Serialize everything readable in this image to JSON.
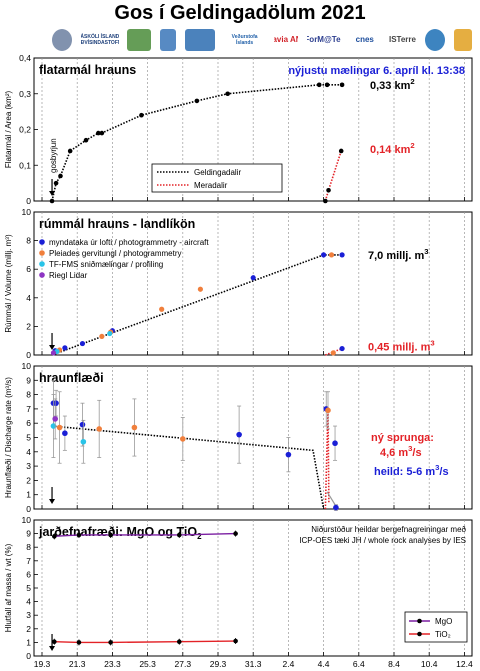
{
  "title": "Gos í Geldingadölum 2021",
  "logos": [
    {
      "name": "hi-seal",
      "text": "",
      "color": "#6b7fa0"
    },
    {
      "name": "hi-logo",
      "text": "HÁSKÓLI ÍSLANDS JARÐVÍSINDASTOFNUN",
      "color": "#1d3f7a"
    },
    {
      "name": "ni-logo",
      "text": "",
      "color": "#4a8c3a"
    },
    {
      "name": "lmi-logo",
      "text": "",
      "color": "#3a76b8"
    },
    {
      "name": "vi-logo",
      "text": "",
      "color": "#2b6cb0"
    },
    {
      "name": "vedur-logo",
      "text": "Veðurstofa Íslands",
      "color": "#1f5fa8"
    },
    {
      "name": "isavia-logo",
      "text": "isavia ANS",
      "color": "#d2232a"
    },
    {
      "name": "formator-logo",
      "text": "ForM@Ter",
      "color": "#2c3e8f"
    },
    {
      "name": "cnes-logo",
      "text": "cnes",
      "color": "#1c4d9c"
    },
    {
      "name": "isterre-logo",
      "text": "ISTerre",
      "color": "#444444"
    },
    {
      "name": "lmv-logo",
      "text": "",
      "color": "#1b6fb5"
    },
    {
      "name": "iav-logo",
      "text": "",
      "color": "#e0a020"
    }
  ],
  "colors": {
    "geldingadalir": "#000000",
    "meradalir": "#e32227",
    "aircraft": "#1a1fd6",
    "pleiades": "#f07f3c",
    "tf_fms": "#29c4e8",
    "riegl": "#8e35c4",
    "mgo": "#7b1fa2",
    "tio2": "#e32227",
    "blue_text": "#1a1fd6",
    "red_text": "#e32227"
  },
  "chart_data": [
    {
      "type": "line",
      "panel_title": "flatarmál hrauns",
      "ylabel": "Flatarmál / Area (km²)",
      "ylim": [
        0,
        0.4
      ],
      "yticks": [
        "0",
        "0,1",
        "0,2",
        "0,3",
        "0,4"
      ],
      "note": "nýjustu mælingar 6. apríl kl. 13:38",
      "annotation": "gosbyrjun",
      "legend": [
        "Geldingadalir",
        "Meradalir"
      ],
      "series": [
        {
          "name": "Geldingadalir",
          "style": "dotted",
          "points": [
            [
              19.87,
              0
            ],
            [
              20.1,
              0.05
            ],
            [
              20.35,
              0.07
            ],
            [
              20.9,
              0.14
            ],
            [
              21.8,
              0.17
            ],
            [
              22.5,
              0.19
            ],
            [
              22.7,
              0.19
            ],
            [
              24.95,
              0.24
            ],
            [
              28.1,
              0.28
            ],
            [
              29.85,
              0.3
            ],
            [
              35.05,
              0.325
            ],
            [
              35.5,
              0.325
            ],
            [
              36.35,
              0.325
            ]
          ]
        },
        {
          "name": "Meradalir",
          "style": "dotted",
          "points": [
            [
              35.4,
              0
            ],
            [
              35.58,
              0.03
            ],
            [
              36.3,
              0.14
            ]
          ]
        }
      ],
      "end_labels": [
        {
          "text": "0,33 km",
          "sup": "2",
          "color": "#000000"
        },
        {
          "text": "0,14 km",
          "sup": "2",
          "color": "#e32227"
        }
      ]
    },
    {
      "type": "scatter",
      "panel_title": "rúmmál hrauns - landlíkön",
      "ylabel": "Rúmmál / Volume (millj. m³)",
      "ylim": [
        0,
        10
      ],
      "yticks": [
        "0",
        "2",
        "4",
        "6",
        "8",
        "10"
      ],
      "legend": [
        "myndataka úr lofti  /  photogrammetry - aircraft",
        "Pleiades gervitungl  /  photogrammetry",
        "TF-FMS sniðmælingar  /  profiling",
        "Riegl Lidar"
      ],
      "series": [
        {
          "name": "myndataka úr lofti  /  photogrammetry - aircraft",
          "color": "#1a1fd6",
          "points": [
            [
              20.05,
              0.3
            ],
            [
              20.6,
              0.5
            ],
            [
              21.6,
              0.8
            ],
            [
              23.3,
              1.7
            ],
            [
              31.3,
              5.4
            ],
            [
              35.3,
              7.0
            ],
            [
              36.35,
              7.0
            ],
            [
              36.35,
              0.45
            ]
          ]
        },
        {
          "name": "Pleiades gervitungl  /  photogrammetry",
          "color": "#f07f3c",
          "points": [
            [
              20.3,
              0.35
            ],
            [
              22.7,
              1.3
            ],
            [
              23.2,
              1.6
            ],
            [
              26.1,
              3.2
            ],
            [
              28.3,
              4.6
            ],
            [
              35.75,
              7.0
            ],
            [
              35.85,
              0.15
            ]
          ]
        },
        {
          "name": "TF-FMS sniðmælingar  /  profiling",
          "color": "#29c4e8",
          "points": [
            [
              20.15,
              0.25
            ],
            [
              23.15,
              1.5
            ]
          ]
        },
        {
          "name": "Riegl Lidar",
          "color": "#8e35c4",
          "points": [
            [
              19.95,
              0.15
            ]
          ]
        }
      ],
      "trend_geldingadalir": [
        [
          19.87,
          0
        ],
        [
          35.3,
          7.0
        ],
        [
          36.35,
          7.0
        ]
      ],
      "trend_meradalir": [
        [
          35.4,
          0
        ],
        [
          36.35,
          0.45
        ]
      ],
      "end_labels": [
        {
          "text": "7,0 millj. m",
          "sup": "3",
          "color": "#000000"
        },
        {
          "text": "0,45 millj. m",
          "sup": "3",
          "color": "#e32227"
        }
      ]
    },
    {
      "type": "scatter",
      "panel_title": "hraunflæði",
      "ylabel": "Hraunflæði / Discharge rate (m³/s)",
      "ylim": [
        0,
        10
      ],
      "yticks": [
        "0",
        "1",
        "2",
        "3",
        "4",
        "5",
        "6",
        "7",
        "8",
        "9",
        "10"
      ],
      "annotation_red": "ný sprunga:",
      "annotation_red2": "4,6 m",
      "annotation_red2_sup": "3",
      "annotation_red2_tail": "/s",
      "annotation_blue": "heild: 5-6 m",
      "annotation_blue_sup": "3",
      "annotation_blue_tail": "/s",
      "series": [
        {
          "name": "aircraft",
          "color": "#1a1fd6",
          "points": [
            [
              19.95,
              7.4,
              1.6
            ],
            [
              20.1,
              7.4,
              0.9
            ],
            [
              20.6,
              5.3,
              1.2
            ],
            [
              21.6,
              5.9,
              1.5
            ],
            [
              30.5,
              5.2,
              2.0
            ],
            [
              33.3,
              3.8,
              1.2
            ],
            [
              35.45,
              7.0,
              1.2
            ],
            [
              35.95,
              4.6,
              1.2
            ],
            [
              36.0,
              0.1,
              0.2
            ]
          ]
        },
        {
          "name": "pleiades",
          "color": "#f07f3c",
          "points": [
            [
              20.3,
              5.7,
              2.5
            ],
            [
              22.55,
              5.6,
              2.0
            ],
            [
              24.55,
              5.7,
              2.0
            ],
            [
              27.3,
              4.9,
              1.5
            ],
            [
              35.55,
              6.9,
              1.3
            ]
          ]
        },
        {
          "name": "tf_fms",
          "color": "#29c4e8",
          "points": [
            [
              19.95,
              5.8,
              2.2
            ],
            [
              21.65,
              4.7,
              1.5
            ]
          ]
        },
        {
          "name": "riegl",
          "color": "#8e35c4",
          "points": [
            [
              20.05,
              6.3,
              1.4
            ]
          ]
        }
      ],
      "trend": [
        [
          19.87,
          5.8
        ],
        [
          34.7,
          4.1
        ],
        [
          35.3,
          0
        ],
        [
          35.4,
          0
        ],
        [
          35.55,
          7.0
        ],
        [
          35.6,
          0.4
        ]
      ],
      "trend_gray": [
        [
          35.5,
          1.2
        ],
        [
          36.1,
          0
        ]
      ]
    },
    {
      "type": "line",
      "panel_title": "jarðefnafræði: MgO og TiO",
      "panel_title_sub": "2",
      "ylabel": "Hlutfall af massa / wt (%)",
      "ylim": [
        0,
        10
      ],
      "yticks": [
        "0",
        "1",
        "2",
        "3",
        "4",
        "5",
        "6",
        "7",
        "8",
        "9",
        "10"
      ],
      "note_lines": [
        "Niðurstöður heildar bergefnagreiningar með",
        "ICP-OES tæki JH / whole rock analyses by IES"
      ],
      "legend": [
        "MgO",
        "TiO₂"
      ],
      "series": [
        {
          "name": "MgO",
          "color": "#7b1fa2",
          "points": [
            [
              20.0,
              8.8
            ],
            [
              21.4,
              8.9
            ],
            [
              23.2,
              8.9
            ],
            [
              27.1,
              8.9
            ],
            [
              30.3,
              9.0
            ]
          ]
        },
        {
          "name": "TiO₂",
          "color": "#e32227",
          "points": [
            [
              20.0,
              1.05
            ],
            [
              21.4,
              1.0
            ],
            [
              23.2,
              1.0
            ],
            [
              27.1,
              1.05
            ],
            [
              30.3,
              1.1
            ]
          ]
        }
      ]
    }
  ],
  "x_axis": {
    "ticks": [
      "19.3",
      "21.3",
      "23.3",
      "25.3",
      "27.3",
      "29.3",
      "31.3",
      "2.4",
      "4.4",
      "6.4",
      "8.4",
      "10.4",
      "12.4"
    ],
    "xlim": [
      19,
      43
    ]
  }
}
